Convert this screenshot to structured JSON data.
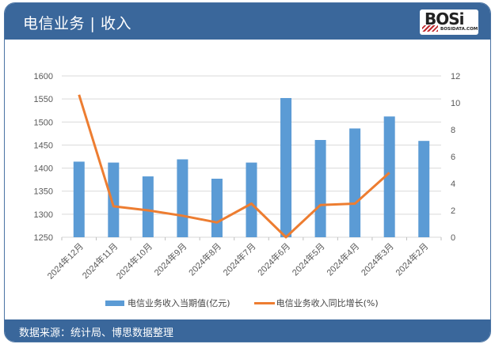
{
  "header": {
    "title": "电信业务 | 收入",
    "logo_text": "BOSi",
    "logo_sub": "BOSIDATA.COM"
  },
  "footer": {
    "source": "数据来源：统计局、博思数据整理"
  },
  "legend": {
    "bar_label": "电信业务收入当期值(亿元)",
    "line_label": "电信业务收入同比增长(%)"
  },
  "colors": {
    "header": "#3a679b",
    "bar": "#5b9bd5",
    "line": "#ed7d31"
  },
  "chart_data": {
    "type": "bar+line",
    "title": "电信业务 | 收入",
    "categories": [
      "2024年12月",
      "2024年11月",
      "2024年10月",
      "2024年9月",
      "2024年8月",
      "2024年7月",
      "2024年6月",
      "2024年5月",
      "2024年4月",
      "2024年3月",
      "2024年2月"
    ],
    "series": [
      {
        "name": "电信业务收入当期值(亿元)",
        "type": "bar",
        "axis": "left",
        "values": [
          1414,
          1412,
          1382,
          1419,
          1377,
          1412,
          1552,
          1461,
          1486,
          1512,
          1459
        ]
      },
      {
        "name": "电信业务收入同比增长(%)",
        "type": "line",
        "axis": "right",
        "values": [
          10.6,
          2.3,
          2.0,
          1.6,
          1.1,
          2.5,
          0.0,
          2.4,
          2.5,
          4.8,
          null
        ]
      }
    ],
    "left_axis": {
      "min": 1250,
      "max": 1600,
      "ticks": [
        1250,
        1300,
        1350,
        1400,
        1450,
        1500,
        1550,
        1600
      ]
    },
    "right_axis": {
      "min": 0,
      "max": 12,
      "ticks": [
        0,
        2,
        4,
        6,
        8,
        10,
        12
      ]
    },
    "grid": true,
    "legend_position": "bottom"
  }
}
